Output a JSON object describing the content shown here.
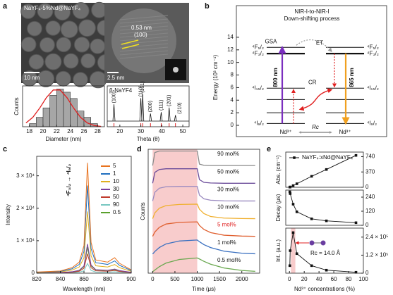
{
  "panels": {
    "a": {
      "letter": "a",
      "tem": {
        "label": "NaYF₄-5%Nd@NaYF₄",
        "scale": "10 nm"
      },
      "hrtem": {
        "spacing": "0.53 nm",
        "plane": "(100)",
        "scale": "2.5 nm"
      },
      "histogram": {
        "type": "histogram",
        "ylabel": "Counts",
        "xlabel": "Diameter (nm)",
        "bins": [
          18,
          19,
          20,
          21,
          22,
          23,
          24,
          25,
          26,
          27,
          28
        ],
        "counts": [
          1,
          3,
          6,
          10,
          12,
          11,
          9,
          5,
          3,
          1
        ],
        "xlim": [
          17,
          29
        ],
        "xticks": [
          18,
          20,
          22,
          24,
          26,
          28
        ],
        "ylim": [
          0,
          13
        ],
        "color": "#a6a6a6",
        "fit": {
          "x": [
            17.5,
            18.5,
            19.5,
            20.5,
            21.5,
            22.5,
            23.5,
            24.5,
            25.5,
            26.5,
            27.5,
            28.5
          ],
          "y": [
            1.2,
            3.0,
            5.9,
            9.3,
            11.7,
            11.7,
            9.3,
            5.9,
            3.0,
            1.2,
            0.4,
            0.1
          ],
          "color": "#e02020"
        }
      },
      "xrd": {
        "type": "line",
        "legend": "β-NaYF4",
        "xlabel": "Theta (θ)",
        "xlim": [
          14,
          53
        ],
        "xticks": [
          20,
          30,
          40,
          50
        ],
        "ylim": [
          0,
          1.25
        ],
        "peaks": [
          {
            "x": 17.2,
            "height": 0.62,
            "label": "(100)"
          },
          {
            "x": 30.0,
            "height": 0.85,
            "label": "(110)"
          },
          {
            "x": 30.9,
            "height": 1.0,
            "label": "(101)"
          },
          {
            "x": 34.6,
            "height": 0.28,
            "label": "(200)"
          },
          {
            "x": 39.7,
            "height": 0.33,
            "label": "(111)"
          },
          {
            "x": 43.5,
            "height": 0.5,
            "label": "(201)"
          },
          {
            "x": 46.5,
            "height": 0.22,
            "label": "(210)"
          }
        ],
        "color": "#111",
        "ref_color": "#e02020"
      }
    },
    "b": {
      "letter": "b",
      "title1": "NIR-I-to-NIR-I",
      "title2": "Down-shifting process",
      "ylabel": "Energy (10³ cm⁻¹)",
      "ylim": [
        0,
        15
      ],
      "yticks": [
        0,
        2,
        4,
        6,
        8,
        10,
        12,
        14
      ],
      "levels": [
        {
          "energy": 12.4,
          "label": "⁴F₅/₂"
        },
        {
          "energy": 11.4,
          "label": "⁴F₃/₂"
        },
        {
          "energy": 5.9,
          "label": "⁴I₁₅/₂"
        },
        {
          "energy": 4.1,
          "label": null
        },
        {
          "energy": 2.0,
          "label": null
        },
        {
          "energy": 0.3,
          "label": "⁴I₉/₂"
        }
      ],
      "absorption": {
        "label": "800 nm",
        "from": 0.3,
        "to": 12.4,
        "color": "#7b2fbf"
      },
      "emission": {
        "label": "865 nm",
        "from": 11.4,
        "to": 0.3,
        "color": "#f0a020"
      },
      "gsa": "GSA",
      "et": "ET",
      "cr": "CR",
      "ion_left": "Nd³⁺",
      "ion_right": "Nd³⁺",
      "rc": "Rc"
    },
    "c": {
      "letter": "c",
      "type": "line",
      "ylabel": "Intensity",
      "xlabel": "Wavelength (nm)",
      "transition": "⁴F₃/₂ → ⁴I₉/₂",
      "xlim": [
        820,
        900
      ],
      "xticks": [
        820,
        840,
        860,
        880,
        900
      ],
      "ylim": [
        0,
        36000
      ],
      "yticks": [
        0,
        {
          "value": 10000,
          "label": "1 × 10⁴"
        },
        {
          "value": 20000,
          "label": "2 × 10⁴"
        },
        {
          "value": 30000,
          "label": "3 × 10⁴"
        }
      ],
      "x": [
        820,
        840,
        850,
        856,
        860,
        863,
        866,
        870,
        880,
        886,
        890,
        900
      ],
      "series": [
        {
          "name": "5",
          "color": "#e8731f",
          "values": [
            340,
            680,
            1700,
            3400,
            8500,
            34000,
            9520,
            4080,
            3400,
            4760,
            3060,
            1020
          ]
        },
        {
          "name": "1",
          "color": "#1f6fbf",
          "values": [
            270,
            540,
            1350,
            2700,
            6750,
            27000,
            7560,
            3240,
            2700,
            3780,
            2430,
            810
          ]
        },
        {
          "name": "10",
          "color": "#e0b020",
          "values": [
            190,
            380,
            950,
            1900,
            4750,
            19000,
            5320,
            2280,
            1900,
            2660,
            1710,
            570
          ]
        },
        {
          "name": "30",
          "color": "#7b3f9c",
          "values": [
            90,
            180,
            450,
            900,
            2250,
            9000,
            2520,
            1080,
            900,
            1260,
            810,
            270
          ]
        },
        {
          "name": "50",
          "color": "#c0392b",
          "values": [
            60,
            120,
            300,
            600,
            1500,
            6000,
            1680,
            720,
            600,
            840,
            540,
            180
          ]
        },
        {
          "name": "90",
          "color": "#76c7c0",
          "values": [
            30,
            60,
            150,
            300,
            750,
            3000,
            840,
            360,
            300,
            420,
            270,
            90
          ]
        },
        {
          "name": "0.5",
          "color": "#5aa02c",
          "values": [
            80,
            160,
            400,
            800,
            2000,
            8000,
            2240,
            960,
            800,
            1120,
            720,
            240
          ]
        }
      ]
    },
    "d": {
      "letter": "d",
      "type": "line",
      "ylabel": "Counts",
      "xlabel": "Time (μs)",
      "xlim": [
        -100,
        2400
      ],
      "xticks": [
        0,
        500,
        1000,
        1500,
        2000
      ],
      "pulse": [
        0,
        1000
      ],
      "pulse_color": "#f8cccc",
      "ylim": [
        0,
        1
      ],
      "x": [
        0,
        50,
        150,
        300,
        600,
        1000,
        1050,
        1150,
        1300,
        1600,
        2000,
        2300
      ],
      "series": [
        {
          "name": "90 mol%",
          "color": "#8a8a8a",
          "text_color": "#111",
          "values": [
            0,
            0.9,
            1,
            1,
            1,
            1,
            0.1,
            0.02,
            0,
            0,
            0,
            0
          ]
        },
        {
          "name": "50 mol%",
          "color": "#6b4c9a",
          "text_color": "#111",
          "values": [
            0,
            0.75,
            0.95,
            1,
            1,
            1,
            0.25,
            0.06,
            0.02,
            0,
            0,
            0
          ]
        },
        {
          "name": "30 mol%",
          "color": "#9a8ac0",
          "text_color": "#111",
          "values": [
            0,
            0.6,
            0.88,
            0.98,
            1,
            1,
            0.4,
            0.15,
            0.05,
            0.01,
            0,
            0
          ]
        },
        {
          "name": "10 mol%",
          "color": "#f0b030",
          "text_color": "#111",
          "values": [
            0,
            0.4,
            0.72,
            0.9,
            0.98,
            1,
            0.65,
            0.35,
            0.15,
            0.04,
            0.01,
            0
          ]
        },
        {
          "name": "5 mol%",
          "color": "#e06030",
          "text_color": "#e02020",
          "values": [
            0,
            0.3,
            0.62,
            0.85,
            0.97,
            1,
            0.75,
            0.48,
            0.26,
            0.08,
            0.02,
            0
          ]
        },
        {
          "name": "1 mol%",
          "color": "#3a70c0",
          "text_color": "#111",
          "values": [
            0,
            0.18,
            0.45,
            0.7,
            0.9,
            0.97,
            0.85,
            0.65,
            0.45,
            0.2,
            0.06,
            0.02
          ]
        },
        {
          "name": "0.5 mol%",
          "color": "#6aa84f",
          "text_color": "#111",
          "values": [
            0,
            0.12,
            0.35,
            0.6,
            0.85,
            0.95,
            0.88,
            0.72,
            0.52,
            0.26,
            0.09,
            0.03
          ]
        }
      ]
    },
    "e": {
      "letter": "e",
      "type": "line",
      "legend": "NaYF₄:xNd@NaYF₄",
      "xlabel": "Nd³⁺ concentrations (%)",
      "x": [
        0.5,
        1,
        5,
        10,
        30,
        50,
        90
      ],
      "xlim": [
        -5,
        100
      ],
      "xticks": [
        0,
        20,
        40,
        60,
        80,
        100
      ],
      "color": "#111",
      "highlight": [
        2,
        8
      ],
      "highlight_color": "#f8cccc",
      "annotation": "Rc = 14.0 Å",
      "panels": [
        {
          "ylabel": "Abs. (cm⁻¹)",
          "ylim": [
            0,
            850
          ],
          "yticks": [
            0,
            370,
            740
          ],
          "values": [
            4,
            8,
            40,
            85,
            265,
            430,
            770
          ]
        },
        {
          "ylabel": "Decay (μs)",
          "ylim": [
            0,
            300
          ],
          "yticks": [
            0,
            120,
            240
          ],
          "values": [
            285,
            270,
            180,
            115,
            55,
            38,
            22
          ]
        },
        {
          "ylabel": "Int. (a.u.)",
          "ylim": [
            0,
            300000
          ],
          "yticks": [
            0,
            {
              "value": 120000,
              "label": "1.2 × 10⁵"
            },
            {
              "value": 240000,
              "label": "2.4 × 10⁵"
            }
          ],
          "values": [
            50000,
            150000,
            270000,
            130000,
            50000,
            20000,
            6000
          ]
        }
      ]
    }
  }
}
